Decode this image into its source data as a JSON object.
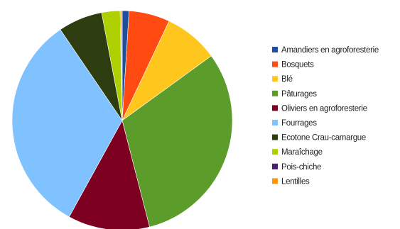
{
  "chart_data": {
    "type": "pie",
    "title": "",
    "legend_position": "right",
    "start_angle_deg": 0,
    "direction": "clockwise",
    "slices": [
      {
        "label": "Amandiers en agroforesterie",
        "value": 1.0,
        "color": "#1f4e9c"
      },
      {
        "label": "Bosquets",
        "value": 6.0,
        "color": "#ff4a12"
      },
      {
        "label": "Blé",
        "value": 8.0,
        "color": "#ffc61e"
      },
      {
        "label": "Pâturages",
        "value": 31.0,
        "color": "#5b9c2a"
      },
      {
        "label": "Oliviers en agroforesterie",
        "value": 12.0,
        "color": "#7e0021"
      },
      {
        "label": "Fourrages",
        "value": 32.5,
        "color": "#7fc2ff"
      },
      {
        "label": "Ecotone Crau-camargue",
        "value": 6.5,
        "color": "#2e3d10"
      },
      {
        "label": "Maraîchage",
        "value": 2.7,
        "color": "#aecf00"
      },
      {
        "label": "Pois-chiche",
        "value": 0.1,
        "color": "#4b1f6f"
      },
      {
        "label": "Lentilles",
        "value": 0.2,
        "color": "#ff950e"
      }
    ]
  }
}
